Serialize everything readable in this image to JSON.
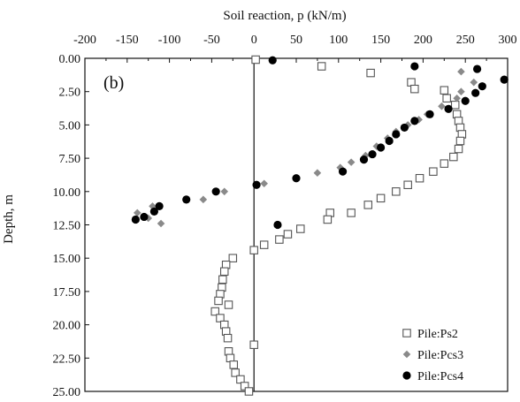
{
  "chart_data": {
    "type": "scatter",
    "panel_label": "(b)",
    "xlabel": "Soil reaction, p (kN/m)",
    "ylabel": "Depth, m",
    "x_axis_position": "top",
    "y_axis_inverted": true,
    "xlim": [
      -200,
      300
    ],
    "ylim": [
      0,
      25
    ],
    "xticks": [
      -200,
      -150,
      -100,
      -50,
      0,
      50,
      100,
      150,
      200,
      250,
      300
    ],
    "xtick_labels": [
      "-200",
      "-150",
      "-100",
      "-50",
      "0",
      "50",
      "100",
      "150",
      "200",
      "250",
      "300"
    ],
    "yticks": [
      0,
      2.5,
      5,
      7.5,
      10,
      12.5,
      15,
      17.5,
      20,
      22.5,
      25
    ],
    "ytick_labels": [
      "0.00",
      "2.50",
      "5.00",
      "7.50",
      "10.00",
      "12.50",
      "15.00",
      "17.50",
      "20.00",
      "22.50",
      "25.00"
    ],
    "grid": false,
    "legend_position": "bottom-right",
    "colors": {
      "axis": "#111111",
      "ps2": "#555555",
      "pcs3": "#8a8a8a",
      "pcs4": "#000000"
    },
    "series": [
      {
        "name": "Pile:Ps2",
        "marker": "open-square",
        "points": [
          [
            2,
            0.1
          ],
          [
            80,
            0.6
          ],
          [
            138,
            1.1
          ],
          [
            186,
            1.8
          ],
          [
            190,
            2.3
          ],
          [
            225,
            2.4
          ],
          [
            228,
            3.0
          ],
          [
            238,
            3.5
          ],
          [
            240,
            4.2
          ],
          [
            242,
            4.7
          ],
          [
            244,
            5.2
          ],
          [
            246,
            5.7
          ],
          [
            244,
            6.2
          ],
          [
            242,
            6.8
          ],
          [
            236,
            7.4
          ],
          [
            225,
            7.9
          ],
          [
            212,
            8.5
          ],
          [
            196,
            9.0
          ],
          [
            182,
            9.5
          ],
          [
            168,
            10.0
          ],
          [
            150,
            10.5
          ],
          [
            135,
            11.0
          ],
          [
            115,
            11.6
          ],
          [
            90,
            11.6
          ],
          [
            87,
            12.1
          ],
          [
            55,
            12.8
          ],
          [
            40,
            13.2
          ],
          [
            30,
            13.6
          ],
          [
            12,
            14.0
          ],
          [
            0,
            14.4
          ],
          [
            -25,
            15.0
          ],
          [
            -33,
            15.5
          ],
          [
            -35,
            16.0
          ],
          [
            -37,
            16.6
          ],
          [
            -38,
            17.2
          ],
          [
            -40,
            17.7
          ],
          [
            -42,
            18.2
          ],
          [
            -30,
            18.5
          ],
          [
            -46,
            19.0
          ],
          [
            -40,
            19.5
          ],
          [
            -35,
            20.0
          ],
          [
            -33,
            20.5
          ],
          [
            -31,
            21.0
          ],
          [
            0,
            21.5
          ],
          [
            -30,
            22.0
          ],
          [
            -28,
            22.5
          ],
          [
            -24,
            23.0
          ],
          [
            -22,
            23.6
          ],
          [
            -16,
            24.1
          ],
          [
            -11,
            24.6
          ],
          [
            -6,
            25.0
          ]
        ]
      },
      {
        "name": "Pile:Pcs3",
        "marker": "filled-diamond",
        "points": [
          [
            245,
            1.0
          ],
          [
            260,
            1.8
          ],
          [
            245,
            2.5
          ],
          [
            240,
            3.0
          ],
          [
            222,
            3.6
          ],
          [
            205,
            4.2
          ],
          [
            195,
            4.6
          ],
          [
            182,
            5.0
          ],
          [
            168,
            5.5
          ],
          [
            158,
            6.0
          ],
          [
            145,
            6.6
          ],
          [
            132,
            7.3
          ],
          [
            115,
            7.8
          ],
          [
            102,
            8.2
          ],
          [
            75,
            8.6
          ],
          [
            12,
            9.4
          ],
          [
            -35,
            10.0
          ],
          [
            -60,
            10.6
          ],
          [
            -120,
            11.1
          ],
          [
            -138,
            11.6
          ],
          [
            -125,
            12.0
          ],
          [
            -110,
            12.4
          ]
        ]
      },
      {
        "name": "Pile:Pcs4",
        "marker": "filled-circle",
        "points": [
          [
            22,
            0.15
          ],
          [
            190,
            0.6
          ],
          [
            264,
            0.8
          ],
          [
            296,
            1.6
          ],
          [
            270,
            2.1
          ],
          [
            262,
            2.6
          ],
          [
            250,
            3.2
          ],
          [
            230,
            3.8
          ],
          [
            208,
            4.2
          ],
          [
            190,
            4.7
          ],
          [
            178,
            5.2
          ],
          [
            168,
            5.7
          ],
          [
            160,
            6.2
          ],
          [
            150,
            6.7
          ],
          [
            140,
            7.2
          ],
          [
            130,
            7.6
          ],
          [
            105,
            8.5
          ],
          [
            50,
            9.0
          ],
          [
            3,
            9.5
          ],
          [
            -45,
            10.0
          ],
          [
            -80,
            10.6
          ],
          [
            -112,
            11.1
          ],
          [
            -118,
            11.5
          ],
          [
            -130,
            11.9
          ],
          [
            -140,
            12.1
          ],
          [
            28,
            12.5
          ]
        ]
      }
    ]
  }
}
